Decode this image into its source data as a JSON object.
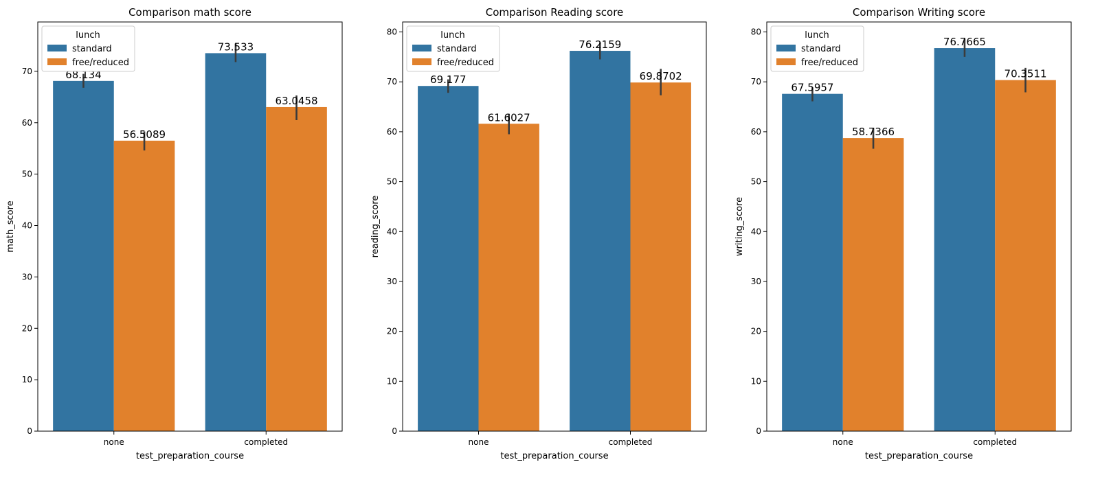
{
  "chart_data": [
    {
      "type": "bar",
      "title": "Comparison math score",
      "xlabel": "test_preparation_course",
      "ylabel": "math_score",
      "categories": [
        "none",
        "completed"
      ],
      "ylim": [
        0,
        79.6
      ],
      "yticks": [
        0,
        10,
        20,
        30,
        40,
        50,
        60,
        70
      ],
      "legend": {
        "title": "lunch",
        "placement": "top-left"
      },
      "series": [
        {
          "name": "standard",
          "color": "#3274a1",
          "values": [
            68.134,
            73.533
          ],
          "labels": [
            "68.134",
            "73.533"
          ],
          "err_low": [
            66.8,
            71.8
          ],
          "err_high": [
            69.5,
            75.4
          ]
        },
        {
          "name": "free/reduced",
          "color": "#e1812c",
          "values": [
            56.5089,
            63.0458
          ],
          "labels": [
            "56.5089",
            "63.0458"
          ],
          "err_low": [
            54.6,
            60.5
          ],
          "err_high": [
            58.3,
            65.3
          ]
        }
      ]
    },
    {
      "type": "bar",
      "title": "Comparison Reading score",
      "xlabel": "test_preparation_course",
      "ylabel": "reading_score",
      "categories": [
        "none",
        "completed"
      ],
      "ylim": [
        0,
        82
      ],
      "yticks": [
        0,
        10,
        20,
        30,
        40,
        50,
        60,
        70,
        80
      ],
      "legend": {
        "title": "lunch",
        "placement": "top-left"
      },
      "series": [
        {
          "name": "standard",
          "color": "#3274a1",
          "values": [
            69.177,
            76.2159
          ],
          "labels": [
            "69.177",
            "76.2159"
          ],
          "err_low": [
            67.8,
            74.5
          ],
          "err_high": [
            70.5,
            77.9
          ]
        },
        {
          "name": "free/reduced",
          "color": "#e1812c",
          "values": [
            61.6027,
            69.8702
          ],
          "labels": [
            "61.6027",
            "69.8702"
          ],
          "err_low": [
            59.5,
            67.3
          ],
          "err_high": [
            63.6,
            72.6
          ]
        }
      ]
    },
    {
      "type": "bar",
      "title": "Comparison Writing score",
      "xlabel": "test_preparation_course",
      "ylabel": "writing_score",
      "categories": [
        "none",
        "completed"
      ],
      "ylim": [
        0,
        82
      ],
      "yticks": [
        0,
        10,
        20,
        30,
        40,
        50,
        60,
        70,
        80
      ],
      "legend": {
        "title": "lunch",
        "placement": "top-left"
      },
      "series": [
        {
          "name": "standard",
          "color": "#3274a1",
          "values": [
            67.5957,
            76.7665
          ],
          "labels": [
            "67.5957",
            "76.7665"
          ],
          "err_low": [
            66.1,
            75.0
          ],
          "err_high": [
            68.9,
            78.6
          ]
        },
        {
          "name": "free/reduced",
          "color": "#e1812c",
          "values": [
            58.7366,
            70.3511
          ],
          "labels": [
            "58.7366",
            "70.3511"
          ],
          "err_low": [
            56.6,
            67.9
          ],
          "err_high": [
            60.8,
            72.8
          ]
        }
      ]
    }
  ]
}
